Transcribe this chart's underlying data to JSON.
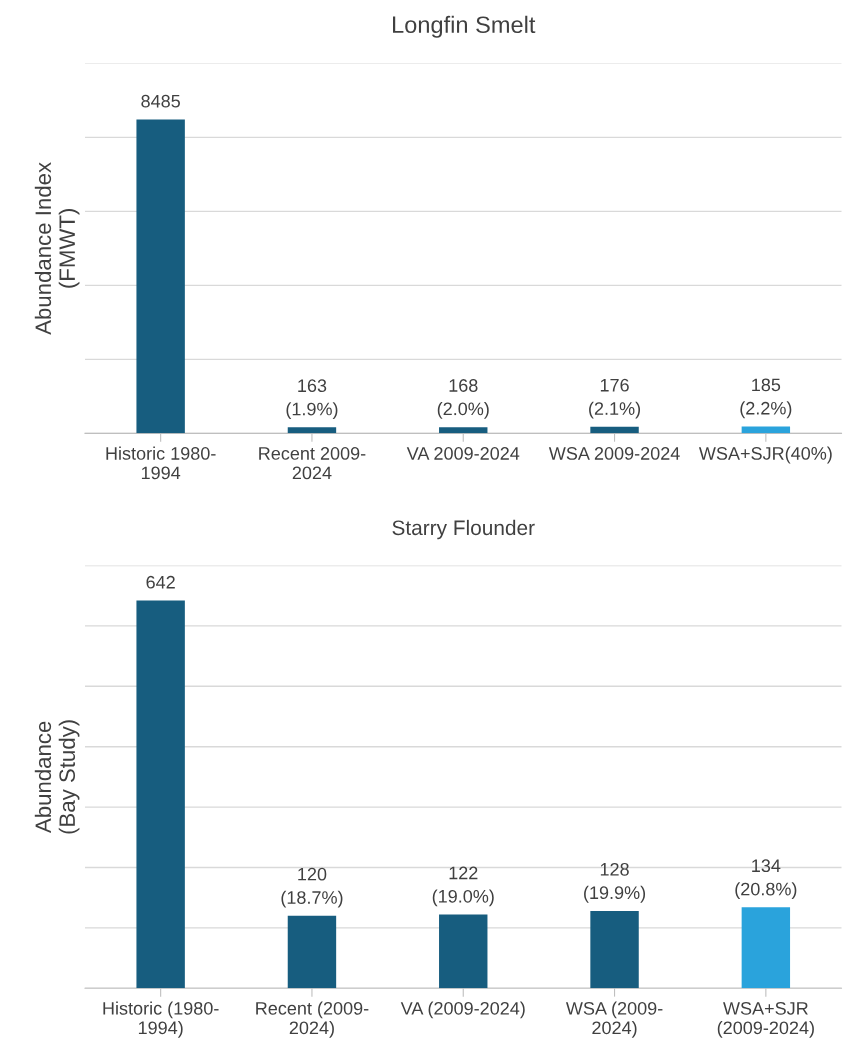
{
  "chart_data": [
    {
      "type": "bar",
      "title": "Longfin Smelt",
      "ylabel": "Abundance Index\n(FMWT)",
      "categories": [
        "Historic 1980-\n1994",
        "Recent 2009-\n2024",
        "VA 2009-2024",
        "WSA 2009-2024",
        "WSA+SJR(40%)"
      ],
      "values": [
        8485,
        163,
        168,
        176,
        185
      ],
      "colors": [
        "#175d7f",
        "#175d7f",
        "#175d7f",
        "#175d7f",
        "#2aa3dc"
      ],
      "value_labels": [
        "8485",
        "163\n(1.9%)",
        "168\n(2.0%)",
        "176\n(2.1%)",
        "185\n(2.2%)"
      ],
      "ylim": [
        0,
        10000
      ],
      "yticks": [
        {
          "value": 0,
          "label": null
        },
        {
          "value": 2000,
          "label": null
        },
        {
          "value": 4000,
          "label": null
        },
        {
          "value": 6000,
          "label": null
        },
        {
          "value": 8000,
          "label": null
        },
        {
          "value": 10000,
          "label": null
        }
      ],
      "grid": "y",
      "tick_labels": "x"
    },
    {
      "type": "bar",
      "title": "Starry Flounder",
      "ylabel": "Abundance\n(Bay Study)",
      "categories": [
        "Historic (1980-\n1994)",
        "Recent (2009-\n2024)",
        "VA (2009-2024)",
        "WSA (2009-\n2024)",
        "WSA+SJR\n(2009-2024)"
      ],
      "values": [
        642,
        120,
        122,
        128,
        134
      ],
      "colors": [
        "#175d7f",
        "#175d7f",
        "#175d7f",
        "#175d7f",
        "#2aa3dc"
      ],
      "value_labels": [
        "642",
        "120\n(18.7%)",
        "122\n(19.0%)",
        "128\n(19.9%)",
        "134\n(20.8%)"
      ],
      "ylim": [
        0,
        700
      ],
      "yticks": [
        {
          "value": 0,
          "label": null
        },
        {
          "value": 100,
          "label": null
        },
        {
          "value": 200,
          "label": null
        },
        {
          "value": 300,
          "label": null
        },
        {
          "value": 400,
          "label": null
        },
        {
          "value": 500,
          "label": null
        },
        {
          "value": 600,
          "label": null
        },
        {
          "value": 700,
          "label": null
        }
      ],
      "grid": "y",
      "tick_labels": "x"
    }
  ]
}
